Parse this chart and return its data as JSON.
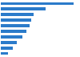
{
  "values": [
    100,
    62,
    45,
    42,
    40,
    36,
    30,
    22,
    17,
    10
  ],
  "bar_color": "#2b7bca",
  "background_color": "#ffffff",
  "bar_height": 0.55,
  "xlim": [
    0,
    108
  ]
}
